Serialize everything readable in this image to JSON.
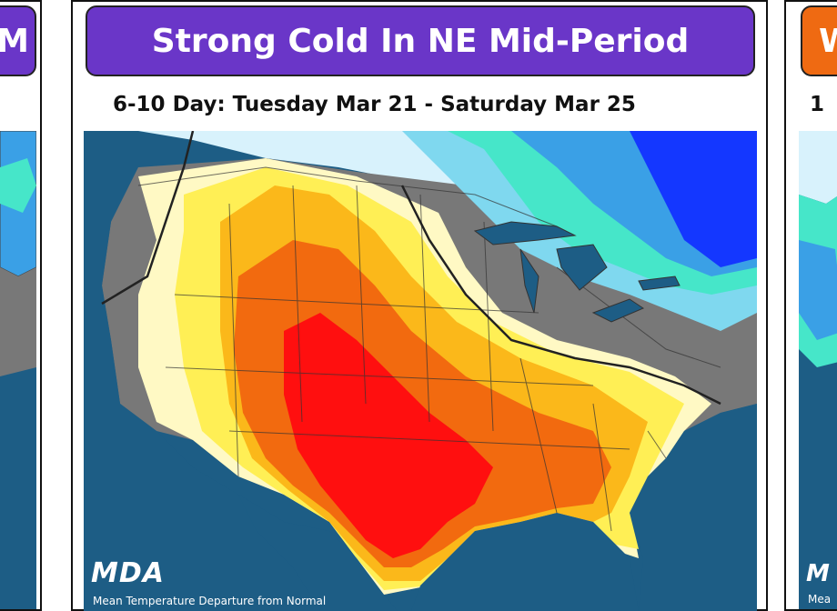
{
  "left_panel": {
    "banner_text": "M"
  },
  "center_panel": {
    "banner_text": "Strong Cold In NE Mid-Period",
    "subtitle": "6-10 Day: Tuesday Mar 21 - Saturday Mar 25",
    "logo_text": "MDA",
    "caption": "Mean Temperature Departure from Normal"
  },
  "right_panel": {
    "banner_text": "W",
    "subtitle_fragment": "1",
    "logo_text": "M",
    "caption": "Mea"
  },
  "colors": {
    "ocean": "#1d5d85",
    "banner_purple": "#6a36c8",
    "banner_orange": "#ef6a12",
    "much_above": "#ff0f0f",
    "above": "#f26a0f",
    "slightly_above": "#fbb81a",
    "near_above": "#ffef55",
    "near_normal_warm": "#fff9c4",
    "normal": "#787878",
    "near_normal_cold": "#d8f2fc",
    "slightly_below": "#7fd8ef",
    "below": "#46e6c9",
    "much_below": "#3aa0e6",
    "strong_below": "#1437ff"
  }
}
